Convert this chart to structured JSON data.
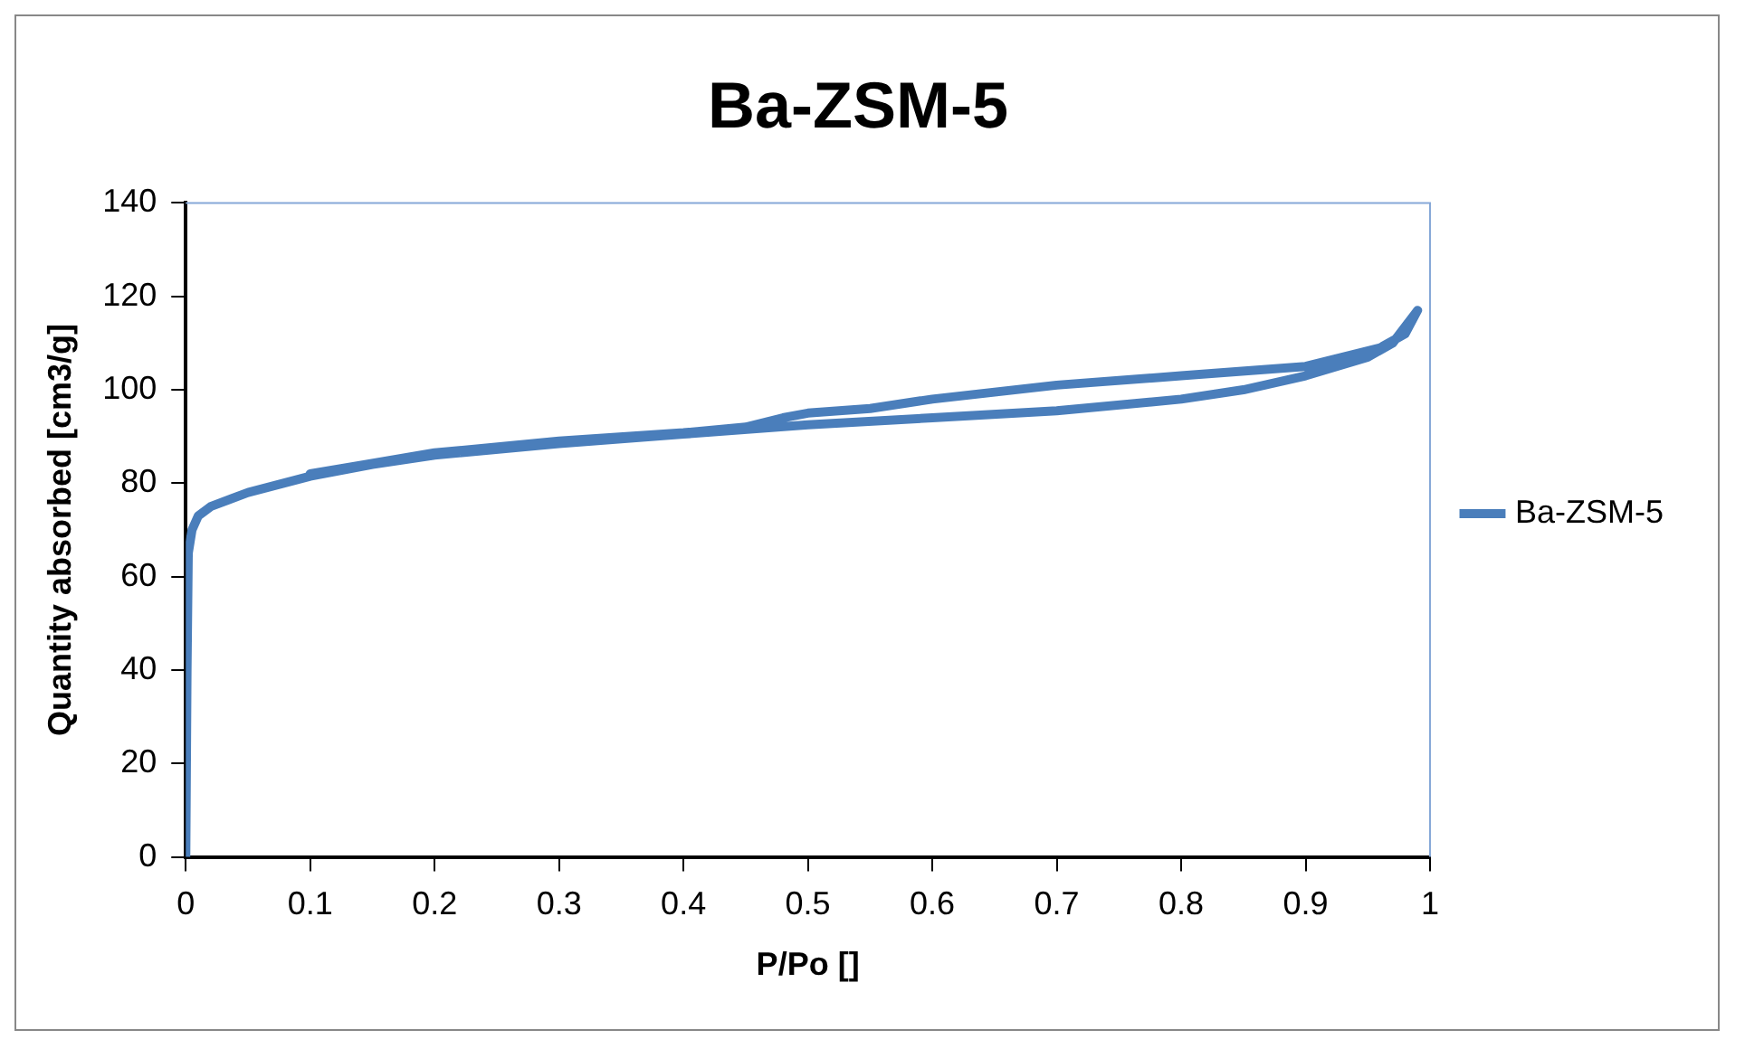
{
  "chart_data": {
    "type": "line",
    "title": "Ba-ZSM-5",
    "xlabel": "P/Po []",
    "ylabel": "Quantity absorbed [cm3/g]",
    "xlim": [
      0,
      1
    ],
    "xticks": [
      0,
      0.1,
      0.2,
      0.3,
      0.4,
      0.5,
      0.6,
      0.7,
      0.8,
      0.9,
      1
    ],
    "ylim": [
      0,
      140
    ],
    "yticks": [
      0,
      20,
      40,
      60,
      80,
      100,
      120,
      140
    ],
    "grid": false,
    "legend": "right",
    "marker": "none",
    "line_style": "solid",
    "series": [
      {
        "name": "Ba-ZSM-5",
        "color": "#4a7ebb",
        "x": [
          0,
          0.001,
          0.002,
          0.005,
          0.01,
          0.02,
          0.05,
          0.1,
          0.15,
          0.2,
          0.3,
          0.4,
          0.5,
          0.6,
          0.7,
          0.8,
          0.85,
          0.9,
          0.95,
          0.97,
          0.99,
          0.98,
          0.96,
          0.9,
          0.8,
          0.7,
          0.6,
          0.55,
          0.5,
          0.48,
          0.45,
          0.4,
          0.3,
          0.2,
          0.1
        ],
        "values": [
          0,
          40,
          65,
          70,
          73,
          75,
          78,
          81.5,
          84,
          86,
          88.5,
          90.5,
          92.5,
          94,
          95.5,
          98,
          100,
          103,
          107,
          110,
          117,
          112,
          109,
          105,
          103,
          101,
          98,
          96,
          95,
          94,
          92,
          90.8,
          89,
          86.5,
          82
        ]
      }
    ]
  }
}
